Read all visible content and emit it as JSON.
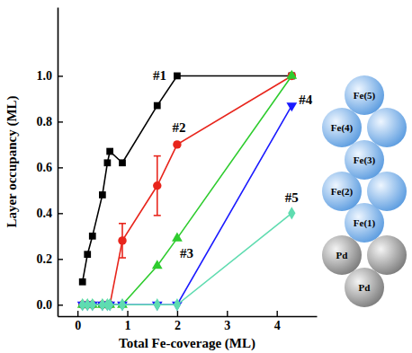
{
  "chart_data": {
    "type": "line",
    "x_label": "Total Fe-coverage (ML)",
    "y_label": "Layer occupancy (ML)",
    "x": [
      0.1,
      0.2,
      0.3,
      0.5,
      0.6,
      0.65,
      0.9,
      1.6,
      2.0,
      4.3
    ],
    "xlim": [
      -0.4,
      4.8
    ],
    "xticks": [
      0,
      1,
      2,
      3,
      4
    ],
    "ylim": [
      -0.05,
      1.3
    ],
    "yticks": [
      {
        "value": 0,
        "label": "0.0"
      },
      0.2,
      0.4,
      0.6,
      0.8,
      {
        "value": 1,
        "label": "1.0"
      }
    ],
    "series": [
      {
        "name": "#1",
        "color": "#000000",
        "marker": "square",
        "line_style": "solid",
        "values": [
          0.1,
          0.22,
          0.3,
          0.48,
          0.62,
          0.67,
          0.62,
          0.87,
          1.0,
          1.0
        ]
      },
      {
        "name": "#2",
        "color": "#e8251c",
        "marker": "circle",
        "line_style": "solid",
        "values": [
          0,
          0,
          0,
          0,
          0,
          0,
          0.28,
          0.52,
          0.7,
          1.0
        ],
        "errors": [
          null,
          null,
          null,
          null,
          null,
          null,
          0.075,
          0.13,
          null,
          null
        ]
      },
      {
        "name": "#3",
        "color": "#2ecc2e",
        "marker": "triangle",
        "line_style": "solid",
        "values": [
          0,
          0,
          0,
          0,
          0,
          0,
          0,
          0.17,
          0.29,
          1.0
        ]
      },
      {
        "name": "#4",
        "color": "#1a1aff",
        "marker": "triangle-down",
        "line_style": "solid",
        "values": [
          0,
          0,
          0,
          0,
          0,
          0,
          0,
          0,
          0,
          0.87
        ]
      },
      {
        "name": "#5",
        "color": "#5fdcb0",
        "marker": "diamond",
        "line_style": "solid",
        "values": [
          0,
          0,
          0,
          0,
          0,
          0,
          0,
          0,
          0,
          0.4
        ]
      }
    ]
  },
  "diagram": {
    "labels": [
      "Fe(5)",
      "Fe(4)",
      "Fe(3)",
      "Fe(2)",
      "Fe(1)",
      "Pd",
      "Pd"
    ]
  }
}
